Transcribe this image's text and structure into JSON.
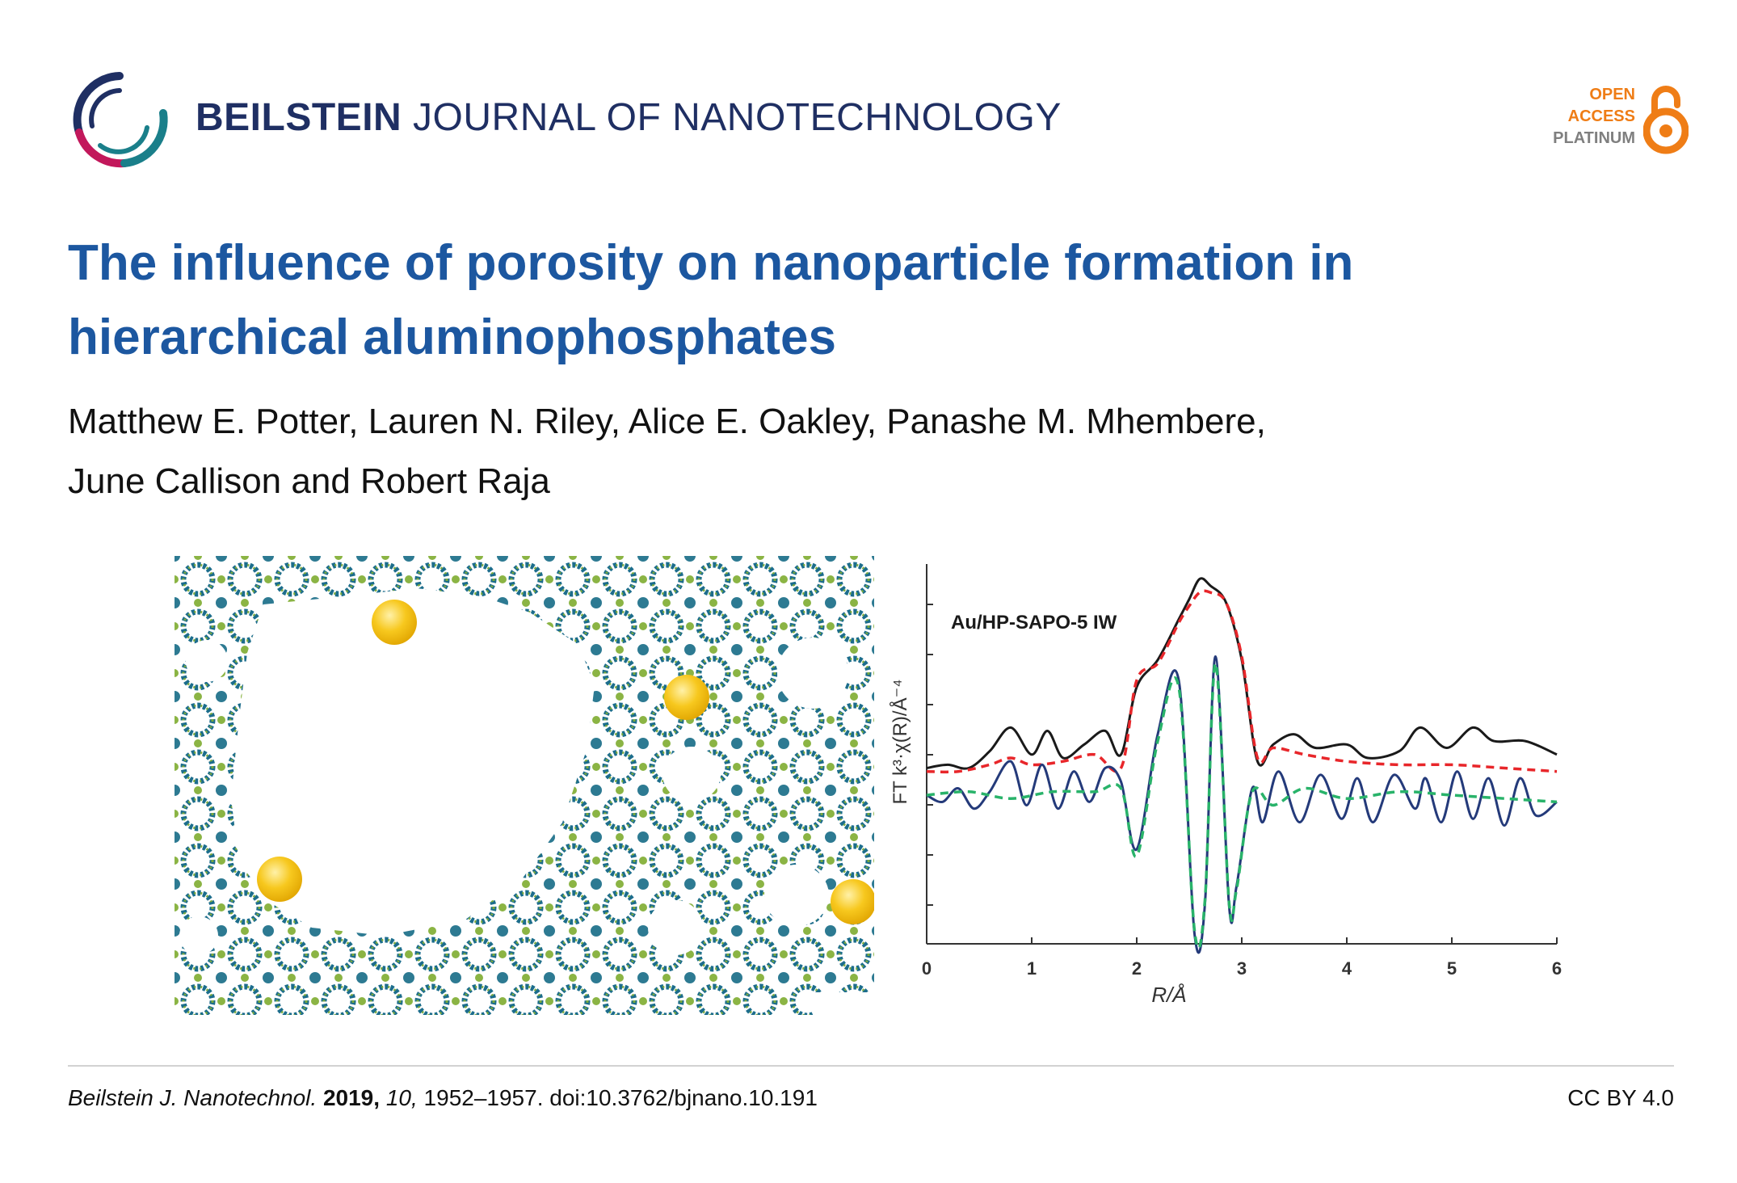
{
  "header": {
    "journal_bold": "BEILSTEIN",
    "journal_rest": "JOURNAL OF NANOTECHNOLOGY",
    "logo_icon": "beilstein-ring-logo-icon",
    "badge": {
      "line1": "OPEN",
      "line2": "ACCESS",
      "line3": "PLATINUM",
      "icon": "open-lock-icon"
    }
  },
  "article": {
    "title_line1": "The influence of porosity on nanoparticle formation in",
    "title_line2": "hierarchical aluminophosphates",
    "authors_line1": "Matthew E. Potter, Lauren N. Riley, Alice E. Oakley, Panashe M. Mhembere,",
    "authors_line2": "June Callison and Robert Raja"
  },
  "colors": {
    "title": "#1c57a0",
    "journal": "#1f2f63",
    "oa_orange": "#ef7d16",
    "fit_black": "#1a1a1a",
    "fit_red": "#e8262a",
    "exp_blue": "#243a7a",
    "fit_green": "#29b36a",
    "nanoparticle": "#f7c81e"
  },
  "chart_data": {
    "type": "line",
    "annotation": "Au/HP-SAPO-5 IW",
    "xlabel": "R/Å",
    "ylabel": "FT k³·χ(R)/Å⁻⁴",
    "xlim": [
      0,
      6
    ],
    "xticks": [
      "0",
      "1",
      "2",
      "3",
      "4",
      "5",
      "6"
    ],
    "grid": false,
    "series": [
      {
        "style": "solid-black",
        "x": [
          0,
          0.2,
          0.4,
          0.6,
          0.8,
          1.0,
          1.15,
          1.3,
          1.5,
          1.7,
          1.85,
          2.0,
          2.2,
          2.4,
          2.5,
          2.6,
          2.7,
          2.85,
          3.0,
          3.15,
          3.3,
          3.5,
          3.7,
          4.0,
          4.2,
          4.5,
          4.7,
          4.95,
          5.2,
          5.4,
          5.7,
          6.0
        ],
        "y": [
          5.2,
          5.3,
          5.2,
          5.7,
          6.4,
          5.6,
          6.3,
          5.5,
          5.9,
          6.3,
          5.6,
          7.6,
          8.4,
          9.6,
          10.2,
          10.8,
          10.6,
          10.1,
          8.4,
          5.4,
          5.9,
          6.2,
          5.8,
          5.9,
          5.5,
          5.7,
          6.4,
          5.8,
          6.4,
          6.0,
          6.0,
          5.6
        ]
      },
      {
        "style": "dashed-red",
        "x": [
          0,
          0.3,
          0.6,
          0.8,
          1.0,
          1.3,
          1.6,
          1.85,
          2.0,
          2.2,
          2.4,
          2.5,
          2.6,
          2.7,
          2.85,
          3.0,
          3.15,
          3.3,
          3.6,
          4.0,
          4.5,
          5.0,
          5.5,
          6.0
        ],
        "y": [
          5.1,
          5.1,
          5.3,
          5.5,
          5.3,
          5.4,
          5.6,
          5.2,
          7.8,
          8.3,
          9.5,
          10.0,
          10.4,
          10.4,
          10.1,
          8.5,
          5.5,
          5.8,
          5.6,
          5.4,
          5.3,
          5.3,
          5.2,
          5.1
        ]
      },
      {
        "style": "solid-blue",
        "x": [
          0,
          0.15,
          0.3,
          0.45,
          0.6,
          0.8,
          0.95,
          1.1,
          1.25,
          1.4,
          1.55,
          1.7,
          1.85,
          2.0,
          2.2,
          2.4,
          2.55,
          2.65,
          2.75,
          2.88,
          2.95,
          3.1,
          3.2,
          3.35,
          3.55,
          3.75,
          3.95,
          4.1,
          4.25,
          4.45,
          4.65,
          4.75,
          4.9,
          5.05,
          5.2,
          5.35,
          5.5,
          5.65,
          5.8,
          6.0
        ],
        "y": [
          4.4,
          4.2,
          4.6,
          4.0,
          4.5,
          5.4,
          4.1,
          5.3,
          4.0,
          5.1,
          4.2,
          5.2,
          4.8,
          2.8,
          6.2,
          7.8,
          0.3,
          1.2,
          8.5,
          1.1,
          1.7,
          4.6,
          3.6,
          5.1,
          3.6,
          5.0,
          3.7,
          4.9,
          3.6,
          5.0,
          4.0,
          4.9,
          3.6,
          5.1,
          3.7,
          4.9,
          3.5,
          4.9,
          3.8,
          4.2
        ]
      },
      {
        "style": "dashed-green",
        "x": [
          0,
          0.4,
          0.8,
          1.2,
          1.6,
          1.85,
          2.0,
          2.2,
          2.4,
          2.55,
          2.65,
          2.75,
          2.88,
          2.95,
          3.1,
          3.3,
          3.6,
          4.0,
          4.5,
          5.0,
          5.5,
          6.0
        ],
        "y": [
          4.4,
          4.5,
          4.3,
          4.5,
          4.5,
          4.6,
          2.6,
          6.0,
          7.6,
          0.4,
          1.3,
          8.3,
          1.2,
          1.6,
          4.5,
          4.1,
          4.6,
          4.3,
          4.5,
          4.4,
          4.3,
          4.2
        ]
      }
    ]
  },
  "footer": {
    "journal_abbrev": "Beilstein J. Nanotechnol.",
    "year": "2019,",
    "volume": "10,",
    "pages_doi": "1952–1957. doi:10.3762/bjnano.10.191",
    "license": "CC BY 4.0"
  }
}
